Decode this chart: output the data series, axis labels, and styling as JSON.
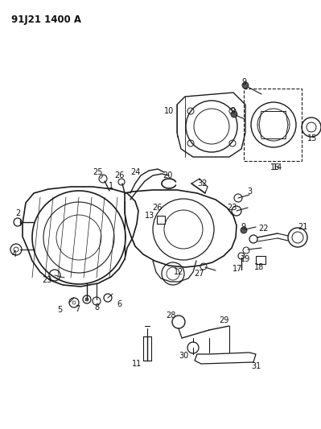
{
  "title": "91J21 1400 A",
  "bg_color": "#ffffff",
  "line_color": "#1a1a1a",
  "text_color": "#111111",
  "fig_width": 3.99,
  "fig_height": 5.33,
  "dpi": 100
}
